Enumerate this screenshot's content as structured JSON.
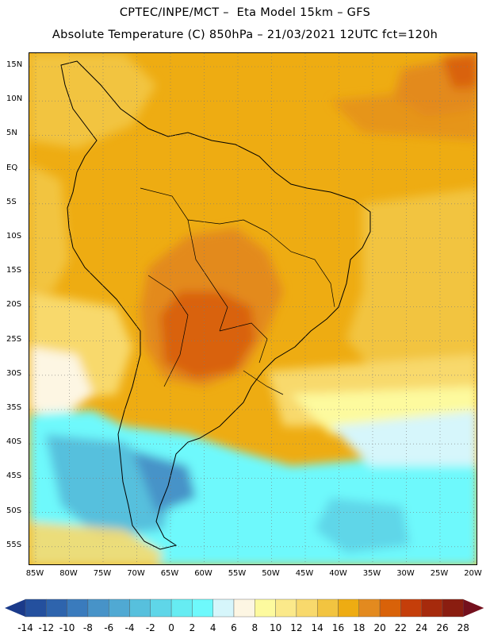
{
  "header": {
    "title_line1": "CPTEC/INPE/MCT –  Eta Model 15km – GFS",
    "title_line2": "Absolute Temperature (C) 850hPa – 21/03/2021 12UTC fct=120h"
  },
  "map": {
    "lat_labels": [
      "15N",
      "10N",
      "5N",
      "EQ",
      "5S",
      "10S",
      "15S",
      "20S",
      "25S",
      "30S",
      "35S",
      "40S",
      "45S",
      "50S",
      "55S"
    ],
    "lon_labels": [
      "85W",
      "80W",
      "75W",
      "70W",
      "65W",
      "60W",
      "55W",
      "50W",
      "45W",
      "40W",
      "35W",
      "30W",
      "25W",
      "20W"
    ],
    "grid": "dotted"
  },
  "colorbar": {
    "labels": [
      "-14",
      "-12",
      "-10",
      "-8",
      "-6",
      "-4",
      "-2",
      "0",
      "2",
      "4",
      "6",
      "8",
      "10",
      "12",
      "14",
      "16",
      "18",
      "20",
      "22",
      "24",
      "26",
      "28"
    ],
    "colors": [
      "#1a3a8a",
      "#24509e",
      "#2e64ad",
      "#3a7bbd",
      "#4793c8",
      "#50a9d3",
      "#57c0dd",
      "#5fd6e8",
      "#66ecf2",
      "#6ef9fc",
      "#d6f6fb",
      "#fdf6e3",
      "#fdfa9e",
      "#fbe98a",
      "#f8d96c",
      "#f2c440",
      "#eeac12",
      "#e38a1f",
      "#d96209",
      "#c53e0a",
      "#a62a0c",
      "#8a1d10",
      "#74101d"
    ]
  }
}
